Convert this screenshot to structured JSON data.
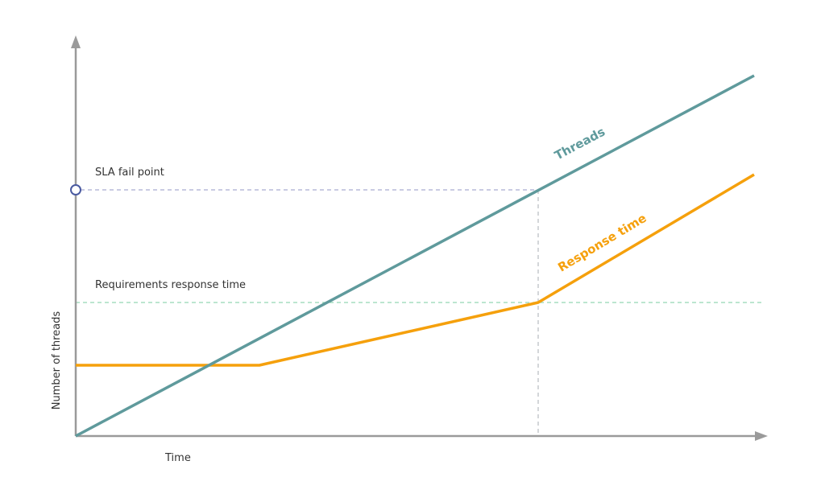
{
  "diagram": {
    "y_axis_label": "Number of threads",
    "x_axis_label": "Time",
    "sla_label": "SLA fail point",
    "requirement_label": "Requirements response time",
    "threads_label": "Threads",
    "response_label": "Response time"
  }
}
